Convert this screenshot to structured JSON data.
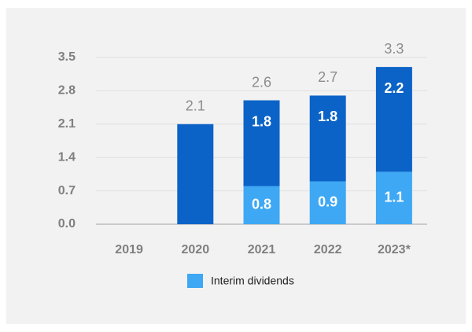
{
  "chart_data": {
    "type": "stacked_bar",
    "categories": [
      "2019",
      "2020",
      "2021",
      "2022",
      "2023*"
    ],
    "series": [
      {
        "name": "Interim dividends",
        "color": "#3ea8f4",
        "values": [
          null,
          null,
          0.8,
          0.9,
          1.1
        ],
        "value_labels": [
          null,
          null,
          "0.8",
          "0.9",
          "1.1"
        ]
      },
      {
        "color": "#0b63c8",
        "values": [
          null,
          2.1,
          1.8,
          1.8,
          2.2
        ],
        "value_labels": [
          null,
          null,
          "1.8",
          "1.8",
          "2.2"
        ]
      }
    ],
    "totals": [
      null,
      2.1,
      2.6,
      2.7,
      3.3
    ],
    "ylim": [
      0,
      3.5
    ],
    "yticks": [
      {
        "value": 0,
        "label": "0.0"
      },
      0.7,
      1.4,
      2.1,
      2.8,
      3.5
    ],
    "grid": true
  }
}
